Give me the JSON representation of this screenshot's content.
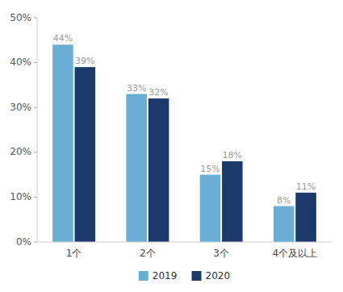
{
  "chart_data": {
    "type": "bar",
    "categories": [
      "1个",
      "2个",
      "3个",
      "4个及以上"
    ],
    "series": [
      {
        "name": "2019",
        "color": "#6AAED6",
        "values": [
          0.44,
          0.33,
          0.15,
          0.08
        ],
        "value_labels": [
          "44%",
          "33%",
          "15%",
          "8%"
        ]
      },
      {
        "name": "2020",
        "color": "#1B3A6B",
        "values": [
          0.39,
          0.32,
          0.18,
          0.11
        ],
        "value_labels": [
          "39%",
          "32%",
          "18%",
          "11%"
        ]
      }
    ],
    "ylim": [
      0,
      0.5
    ],
    "yticks": [
      {
        "value": 0.0,
        "label": "0%"
      },
      {
        "value": 0.1,
        "label": "10%"
      },
      {
        "value": 0.2,
        "label": "20%"
      },
      {
        "value": 0.3,
        "label": "30%"
      },
      {
        "value": 0.4,
        "label": "40%"
      },
      {
        "value": 0.5,
        "label": "50%"
      }
    ],
    "grid": false,
    "data_labels": true,
    "legend": "bottom"
  }
}
